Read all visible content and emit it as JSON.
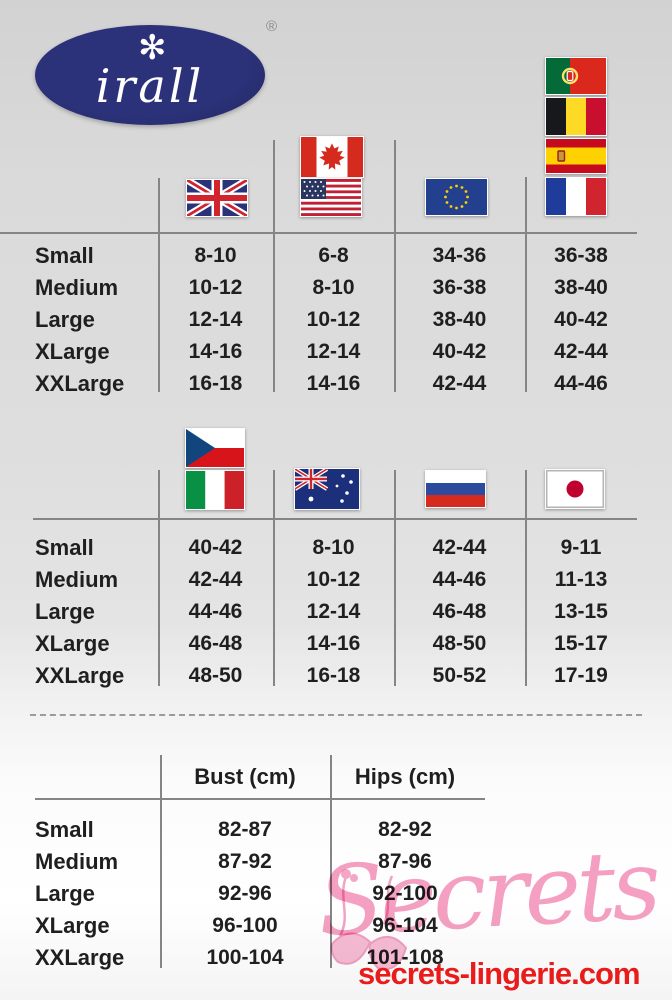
{
  "brand": {
    "name": "irall",
    "registered_mark": "®",
    "flower_glyph": "✻"
  },
  "colors": {
    "logo_navy": "#262c6e",
    "table_line_gray": "#858585",
    "text_dark": "#1f1f1f",
    "watermark_pink": "#f48fb8",
    "watermark_red": "#e91c1c",
    "background_gray": "#dadada"
  },
  "size_table_international_1": {
    "columns": [
      {
        "country": "United Kingdom",
        "flags": [
          "uk"
        ]
      },
      {
        "country": "Canada / USA",
        "flags": [
          "canada",
          "usa"
        ]
      },
      {
        "country": "European Union",
        "flags": [
          "eu"
        ]
      },
      {
        "country": "Portugal / Belgium / Spain / France",
        "flags": [
          "portugal",
          "belgium",
          "spain",
          "france"
        ]
      }
    ],
    "rows": [
      {
        "label": "Small",
        "values": [
          "8-10",
          "6-8",
          "34-36",
          "36-38"
        ]
      },
      {
        "label": "Medium",
        "values": [
          "10-12",
          "8-10",
          "36-38",
          "38-40"
        ]
      },
      {
        "label": "Large",
        "values": [
          "12-14",
          "10-12",
          "38-40",
          "40-42"
        ]
      },
      {
        "label": "XLarge",
        "values": [
          "14-16",
          "12-14",
          "40-42",
          "42-44"
        ]
      },
      {
        "label": "XXLarge",
        "values": [
          "16-18",
          "14-16",
          "42-44",
          "44-46"
        ]
      }
    ]
  },
  "size_table_international_2": {
    "columns": [
      {
        "country": "Czech Republic / Italy",
        "flags": [
          "czech",
          "italy"
        ]
      },
      {
        "country": "Australia",
        "flags": [
          "australia"
        ]
      },
      {
        "country": "Russia",
        "flags": [
          "russia"
        ]
      },
      {
        "country": "Japan",
        "flags": [
          "japan"
        ]
      }
    ],
    "rows": [
      {
        "label": "Small",
        "values": [
          "40-42",
          "8-10",
          "42-44",
          "9-11"
        ]
      },
      {
        "label": "Medium",
        "values": [
          "42-44",
          "10-12",
          "44-46",
          "11-13"
        ]
      },
      {
        "label": "Large",
        "values": [
          "44-46",
          "12-14",
          "46-48",
          "13-15"
        ]
      },
      {
        "label": "XLarge",
        "values": [
          "46-48",
          "14-16",
          "48-50",
          "15-17"
        ]
      },
      {
        "label": "XXLarge",
        "values": [
          "48-50",
          "16-18",
          "50-52",
          "17-19"
        ]
      }
    ]
  },
  "measurement_table": {
    "headers": [
      "Bust (cm)",
      "Hips (cm)"
    ],
    "rows": [
      {
        "label": "Small",
        "values": [
          "82-87",
          "82-92"
        ]
      },
      {
        "label": "Medium",
        "values": [
          "87-92",
          "87-96"
        ]
      },
      {
        "label": "Large",
        "values": [
          "92-96",
          "92-100"
        ]
      },
      {
        "label": "XLarge",
        "values": [
          "96-100",
          "96-104"
        ]
      },
      {
        "label": "XXLarge",
        "values": [
          "100-104",
          "101-108"
        ]
      }
    ]
  },
  "watermark": {
    "script_text": "Secrets",
    "site_text": "secrets-lingerie.com"
  }
}
